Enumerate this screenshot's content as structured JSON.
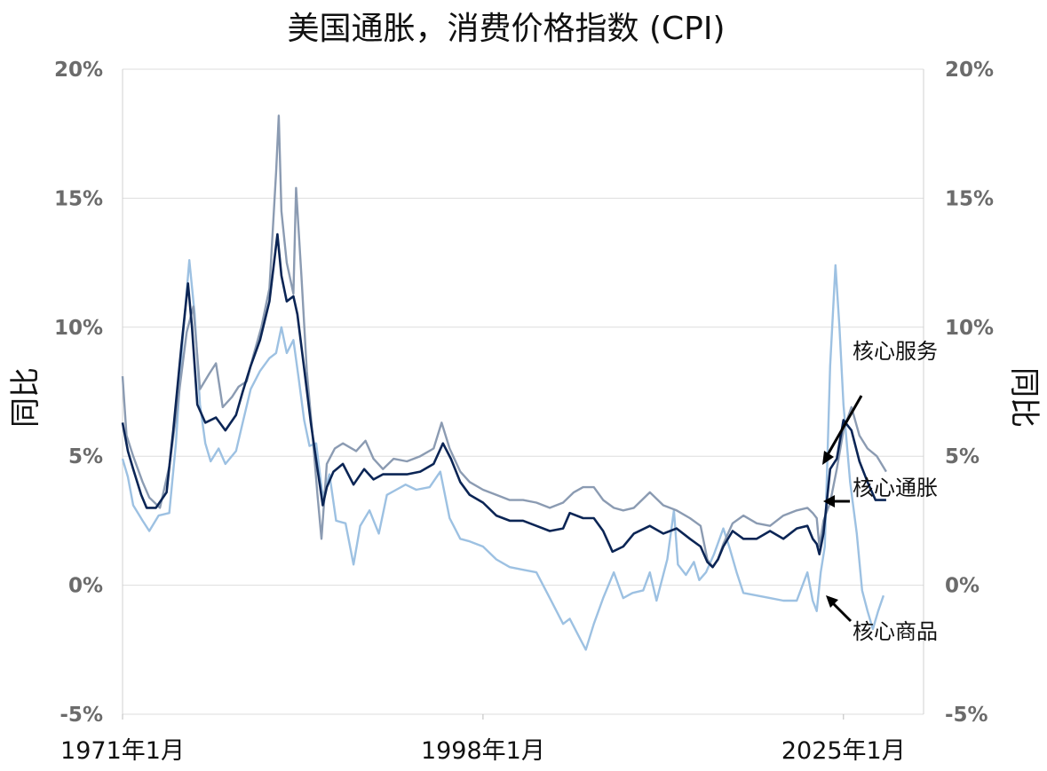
{
  "chart_data": {
    "type": "line",
    "title": "美国通胀，消费价格指数 (CPI)",
    "ylabel_left": "同比",
    "ylabel_right": "同比",
    "ylim": [
      -5,
      20
    ],
    "y_ticks": [
      "-5%",
      "0%",
      "5%",
      "10%",
      "15%",
      "20%"
    ],
    "x_ticks": [
      "1971年1月",
      "1998年1月",
      "2025年1月"
    ],
    "xlim": [
      1971,
      2031
    ],
    "grid": true,
    "series": [
      {
        "name": "核心服务",
        "color": "#8b9bb2",
        "points": [
          [
            1971.0,
            8.1
          ],
          [
            1971.3,
            5.8
          ],
          [
            1971.8,
            5.0
          ],
          [
            1972.5,
            4.0
          ],
          [
            1973.0,
            3.4
          ],
          [
            1973.8,
            3.0
          ],
          [
            1974.5,
            4.6
          ],
          [
            1975.0,
            6.5
          ],
          [
            1975.8,
            9.8
          ],
          [
            1976.3,
            10.8
          ],
          [
            1976.8,
            7.6
          ],
          [
            1977.5,
            8.2
          ],
          [
            1978.0,
            8.6
          ],
          [
            1978.5,
            6.9
          ],
          [
            1979.2,
            7.3
          ],
          [
            1979.7,
            7.7
          ],
          [
            1980.3,
            7.9
          ],
          [
            1980.8,
            8.9
          ],
          [
            1981.4,
            10.0
          ],
          [
            1982.0,
            11.5
          ],
          [
            1982.5,
            16.0
          ],
          [
            1982.7,
            18.2
          ],
          [
            1982.9,
            14.5
          ],
          [
            1983.3,
            12.5
          ],
          [
            1983.8,
            11.3
          ],
          [
            1984.0,
            15.4
          ],
          [
            1984.4,
            12.0
          ],
          [
            1984.8,
            8.3
          ],
          [
            1985.2,
            6.0
          ],
          [
            1985.6,
            3.5
          ],
          [
            1985.9,
            1.8
          ],
          [
            1986.3,
            4.7
          ],
          [
            1986.9,
            5.3
          ],
          [
            1987.5,
            5.5
          ],
          [
            1988.5,
            5.2
          ],
          [
            1989.2,
            5.6
          ],
          [
            1989.8,
            4.9
          ],
          [
            1990.5,
            4.5
          ],
          [
            1991.3,
            4.9
          ],
          [
            1992.3,
            4.8
          ],
          [
            1993.3,
            5.0
          ],
          [
            1994.3,
            5.3
          ],
          [
            1994.9,
            6.3
          ],
          [
            1995.5,
            5.3
          ],
          [
            1996.3,
            4.4
          ],
          [
            1997.0,
            4.0
          ],
          [
            1998.0,
            3.7
          ],
          [
            1999.0,
            3.5
          ],
          [
            2000.0,
            3.3
          ],
          [
            2001.0,
            3.3
          ],
          [
            2002.0,
            3.2
          ],
          [
            2003.0,
            3.0
          ],
          [
            2004.0,
            3.2
          ],
          [
            2004.8,
            3.6
          ],
          [
            2005.5,
            3.8
          ],
          [
            2006.3,
            3.8
          ],
          [
            2007.0,
            3.3
          ],
          [
            2007.8,
            3.0
          ],
          [
            2008.5,
            2.9
          ],
          [
            2009.3,
            3.0
          ],
          [
            2010.5,
            3.6
          ],
          [
            2011.5,
            3.1
          ],
          [
            2012.5,
            2.9
          ],
          [
            2013.5,
            2.6
          ],
          [
            2014.3,
            2.3
          ],
          [
            2014.8,
            1.0
          ],
          [
            2015.2,
            0.7
          ],
          [
            2015.6,
            1.0
          ],
          [
            2016.0,
            1.6
          ],
          [
            2016.7,
            2.4
          ],
          [
            2017.5,
            2.7
          ],
          [
            2018.5,
            2.4
          ],
          [
            2019.5,
            2.3
          ],
          [
            2020.5,
            2.7
          ],
          [
            2021.5,
            2.9
          ],
          [
            2022.3,
            3.0
          ],
          [
            2022.7,
            2.8
          ],
          [
            2023.0,
            2.6
          ],
          [
            2023.2,
            1.5
          ],
          [
            2023.5,
            2.5
          ],
          [
            2024.0,
            3.2
          ],
          [
            2024.5,
            4.5
          ],
          [
            2025.0,
            6.0
          ],
          [
            2025.6,
            6.9
          ],
          [
            2026.2,
            5.8
          ],
          [
            2026.8,
            5.3
          ],
          [
            2027.5,
            5.0
          ],
          [
            2028.2,
            4.4
          ]
        ]
      },
      {
        "name": "核心通胀",
        "color": "#0b2555",
        "points": [
          [
            1971.0,
            6.3
          ],
          [
            1971.4,
            5.2
          ],
          [
            1971.8,
            4.5
          ],
          [
            1972.4,
            3.5
          ],
          [
            1972.8,
            3.0
          ],
          [
            1973.5,
            3.0
          ],
          [
            1974.3,
            3.6
          ],
          [
            1974.8,
            6.0
          ],
          [
            1975.4,
            9.2
          ],
          [
            1975.9,
            11.7
          ],
          [
            1976.2,
            10.0
          ],
          [
            1976.6,
            7.0
          ],
          [
            1977.2,
            6.3
          ],
          [
            1978.0,
            6.5
          ],
          [
            1978.7,
            6.0
          ],
          [
            1979.5,
            6.6
          ],
          [
            1980.0,
            7.5
          ],
          [
            1980.6,
            8.5
          ],
          [
            1981.3,
            9.5
          ],
          [
            1982.0,
            11.0
          ],
          [
            1982.6,
            13.6
          ],
          [
            1982.9,
            12.0
          ],
          [
            1983.3,
            11.0
          ],
          [
            1983.8,
            11.2
          ],
          [
            1984.1,
            10.5
          ],
          [
            1984.6,
            8.4
          ],
          [
            1985.1,
            6.3
          ],
          [
            1985.6,
            4.5
          ],
          [
            1986.0,
            3.1
          ],
          [
            1986.3,
            3.8
          ],
          [
            1986.8,
            4.4
          ],
          [
            1987.5,
            4.7
          ],
          [
            1988.3,
            3.9
          ],
          [
            1989.1,
            4.5
          ],
          [
            1989.8,
            4.1
          ],
          [
            1990.5,
            4.3
          ],
          [
            1991.3,
            4.3
          ],
          [
            1992.3,
            4.3
          ],
          [
            1993.3,
            4.4
          ],
          [
            1994.3,
            4.7
          ],
          [
            1995.0,
            5.5
          ],
          [
            1995.6,
            4.9
          ],
          [
            1996.3,
            4.0
          ],
          [
            1997.0,
            3.5
          ],
          [
            1998.0,
            3.2
          ],
          [
            1999.0,
            2.7
          ],
          [
            2000.0,
            2.5
          ],
          [
            2001.0,
            2.5
          ],
          [
            2002.0,
            2.3
          ],
          [
            2003.0,
            2.1
          ],
          [
            2004.0,
            2.2
          ],
          [
            2004.5,
            2.8
          ],
          [
            2005.5,
            2.6
          ],
          [
            2006.3,
            2.6
          ],
          [
            2007.0,
            2.1
          ],
          [
            2007.7,
            1.3
          ],
          [
            2008.5,
            1.5
          ],
          [
            2009.3,
            2.0
          ],
          [
            2010.5,
            2.3
          ],
          [
            2011.5,
            2.0
          ],
          [
            2012.5,
            2.2
          ],
          [
            2013.5,
            1.8
          ],
          [
            2014.3,
            1.5
          ],
          [
            2014.8,
            0.9
          ],
          [
            2015.2,
            0.7
          ],
          [
            2015.6,
            1.0
          ],
          [
            2016.0,
            1.5
          ],
          [
            2016.7,
            2.1
          ],
          [
            2017.5,
            1.8
          ],
          [
            2018.5,
            1.8
          ],
          [
            2019.5,
            2.1
          ],
          [
            2020.5,
            1.8
          ],
          [
            2021.5,
            2.2
          ],
          [
            2022.3,
            2.3
          ],
          [
            2022.7,
            1.8
          ],
          [
            2023.0,
            1.6
          ],
          [
            2023.2,
            1.2
          ],
          [
            2023.5,
            2.0
          ],
          [
            2024.0,
            4.5
          ],
          [
            2024.5,
            4.9
          ],
          [
            2025.0,
            6.4
          ],
          [
            2025.6,
            6.0
          ],
          [
            2026.2,
            4.8
          ],
          [
            2026.8,
            4.0
          ],
          [
            2027.4,
            3.3
          ],
          [
            2028.2,
            3.3
          ]
        ]
      },
      {
        "name": "核心商品",
        "color": "#9dc1e2",
        "points": [
          [
            1971.0,
            4.9
          ],
          [
            1971.4,
            4.2
          ],
          [
            1971.8,
            3.1
          ],
          [
            1972.5,
            2.5
          ],
          [
            1973.0,
            2.1
          ],
          [
            1973.7,
            2.7
          ],
          [
            1974.5,
            2.8
          ],
          [
            1975.0,
            5.5
          ],
          [
            1975.5,
            9.5
          ],
          [
            1976.0,
            12.6
          ],
          [
            1976.4,
            10.5
          ],
          [
            1976.8,
            7.0
          ],
          [
            1977.2,
            5.5
          ],
          [
            1977.6,
            4.8
          ],
          [
            1978.2,
            5.3
          ],
          [
            1978.7,
            4.7
          ],
          [
            1979.5,
            5.2
          ],
          [
            1980.0,
            6.3
          ],
          [
            1980.6,
            7.6
          ],
          [
            1981.3,
            8.3
          ],
          [
            1982.0,
            8.8
          ],
          [
            1982.5,
            9.0
          ],
          [
            1982.9,
            10.0
          ],
          [
            1983.3,
            9.0
          ],
          [
            1983.8,
            9.5
          ],
          [
            1984.2,
            8.0
          ],
          [
            1984.6,
            6.4
          ],
          [
            1985.0,
            5.4
          ],
          [
            1985.5,
            5.5
          ],
          [
            1986.0,
            3.4
          ],
          [
            1986.5,
            4.3
          ],
          [
            1987.0,
            2.5
          ],
          [
            1987.7,
            2.4
          ],
          [
            1988.3,
            0.8
          ],
          [
            1988.8,
            2.3
          ],
          [
            1989.5,
            2.9
          ],
          [
            1990.2,
            2.0
          ],
          [
            1990.8,
            3.5
          ],
          [
            1991.5,
            3.7
          ],
          [
            1992.2,
            3.9
          ],
          [
            1993.0,
            3.7
          ],
          [
            1994.0,
            3.8
          ],
          [
            1994.8,
            4.4
          ],
          [
            1995.5,
            2.6
          ],
          [
            1996.3,
            1.8
          ],
          [
            1997.0,
            1.7
          ],
          [
            1998.0,
            1.5
          ],
          [
            1999.0,
            1.0
          ],
          [
            2000.0,
            0.7
          ],
          [
            2001.0,
            0.6
          ],
          [
            2002.0,
            0.5
          ],
          [
            2003.0,
            -0.5
          ],
          [
            2004.0,
            -1.5
          ],
          [
            2004.5,
            -1.3
          ],
          [
            2005.2,
            -2.0
          ],
          [
            2005.7,
            -2.5
          ],
          [
            2006.3,
            -1.5
          ],
          [
            2007.0,
            -0.5
          ],
          [
            2007.8,
            0.5
          ],
          [
            2008.5,
            -0.5
          ],
          [
            2009.2,
            -0.3
          ],
          [
            2010.0,
            -0.2
          ],
          [
            2010.5,
            0.5
          ],
          [
            2011.0,
            -0.6
          ],
          [
            2011.8,
            1.0
          ],
          [
            2012.3,
            2.9
          ],
          [
            2012.6,
            0.8
          ],
          [
            2013.2,
            0.4
          ],
          [
            2013.8,
            0.9
          ],
          [
            2014.2,
            0.2
          ],
          [
            2014.7,
            0.5
          ],
          [
            2015.3,
            1.2
          ],
          [
            2016.0,
            2.2
          ],
          [
            2016.5,
            1.4
          ],
          [
            2017.0,
            0.5
          ],
          [
            2017.5,
            -0.3
          ],
          [
            2018.5,
            -0.4
          ],
          [
            2019.5,
            -0.5
          ],
          [
            2020.5,
            -0.6
          ],
          [
            2021.5,
            -0.6
          ],
          [
            2022.3,
            0.5
          ],
          [
            2022.7,
            -0.6
          ],
          [
            2023.0,
            -1.0
          ],
          [
            2023.3,
            0.5
          ],
          [
            2023.6,
            1.5
          ],
          [
            2024.0,
            8.5
          ],
          [
            2024.4,
            12.4
          ],
          [
            2024.7,
            10.0
          ],
          [
            2025.0,
            7.0
          ],
          [
            2025.5,
            4.0
          ],
          [
            2026.0,
            2.0
          ],
          [
            2026.4,
            -0.2
          ],
          [
            2026.8,
            -1.0
          ],
          [
            2027.2,
            -1.7
          ],
          [
            2027.6,
            -1.0
          ],
          [
            2028.0,
            -0.4
          ]
        ]
      }
    ],
    "annotations": [
      {
        "text": "核心服务",
        "series": "核心服务"
      },
      {
        "text": "核心通胀",
        "series": "核心通胀"
      },
      {
        "text": "核心商品",
        "series": "核心商品"
      }
    ]
  }
}
